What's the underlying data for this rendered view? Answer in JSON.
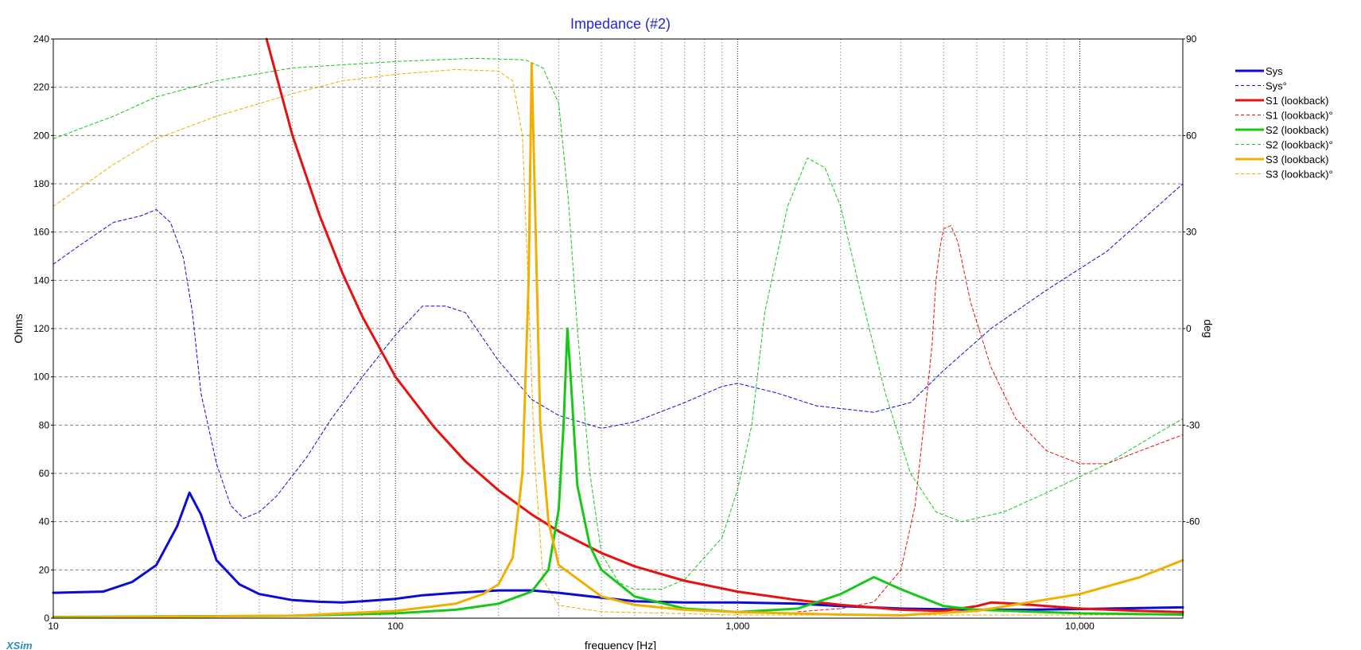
{
  "chart_data": {
    "type": "line",
    "title": "Impedance (#2)",
    "xlabel": "frequency [Hz]",
    "ylabel_left": "Ohms",
    "ylabel_right": "deg",
    "x_scale": "log",
    "xlim": [
      10,
      20000
    ],
    "ylim_left": [
      0,
      240
    ],
    "ylim_right": [
      -90,
      90
    ],
    "x_ticks": [
      {
        "value": 10,
        "label": "10"
      },
      {
        "value": 100,
        "label": "100"
      },
      {
        "value": 1000,
        "label": "1,000"
      },
      {
        "value": 10000,
        "label": "10,000"
      }
    ],
    "y_ticks_left": [
      0,
      20,
      40,
      60,
      80,
      100,
      120,
      140,
      160,
      180,
      200,
      220,
      240
    ],
    "y_ticks_right": [
      90,
      60,
      30,
      0,
      -30,
      -60
    ],
    "grid": true,
    "legend_position": "right",
    "series": [
      {
        "name": "Sys",
        "axis": "left",
        "color": "#0b0bd8",
        "style": "solid",
        "width": 3,
        "points": [
          [
            10,
            10.5
          ],
          [
            14,
            11
          ],
          [
            17,
            15
          ],
          [
            20,
            22
          ],
          [
            23,
            38
          ],
          [
            25,
            52
          ],
          [
            27,
            43
          ],
          [
            30,
            24
          ],
          [
            35,
            14
          ],
          [
            40,
            10
          ],
          [
            50,
            7.5
          ],
          [
            60,
            6.8
          ],
          [
            70,
            6.5
          ],
          [
            80,
            7
          ],
          [
            100,
            8
          ],
          [
            120,
            9.5
          ],
          [
            150,
            10.5
          ],
          [
            200,
            11.5
          ],
          [
            250,
            11.5
          ],
          [
            300,
            10.5
          ],
          [
            400,
            8.5
          ],
          [
            500,
            7
          ],
          [
            700,
            6.5
          ],
          [
            1000,
            6.5
          ],
          [
            1500,
            6
          ],
          [
            2000,
            5
          ],
          [
            3000,
            4
          ],
          [
            5000,
            3.5
          ],
          [
            7000,
            3.5
          ],
          [
            10000,
            3.8
          ],
          [
            15000,
            4.2
          ],
          [
            20000,
            4.5
          ]
        ]
      },
      {
        "name": "Sys°",
        "axis": "right",
        "color": "#0b0bd8",
        "style": "dashed",
        "width": 1,
        "points": [
          [
            10,
            20
          ],
          [
            12,
            26
          ],
          [
            15,
            33
          ],
          [
            18,
            35
          ],
          [
            20,
            37
          ],
          [
            22,
            33
          ],
          [
            24,
            22
          ],
          [
            25.5,
            5
          ],
          [
            27,
            -20
          ],
          [
            30,
            -42
          ],
          [
            33,
            -55
          ],
          [
            36,
            -59
          ],
          [
            40,
            -57
          ],
          [
            45,
            -52
          ],
          [
            55,
            -40
          ],
          [
            65,
            -28
          ],
          [
            80,
            -15
          ],
          [
            100,
            -2
          ],
          [
            120,
            7
          ],
          [
            140,
            7
          ],
          [
            160,
            5
          ],
          [
            200,
            -10
          ],
          [
            250,
            -22
          ],
          [
            300,
            -27
          ],
          [
            400,
            -31
          ],
          [
            500,
            -29
          ],
          [
            700,
            -23
          ],
          [
            900,
            -18
          ],
          [
            1000,
            -17
          ],
          [
            1300,
            -20
          ],
          [
            1700,
            -24
          ],
          [
            2500,
            -26
          ],
          [
            3200,
            -23
          ],
          [
            4000,
            -13
          ],
          [
            5500,
            0
          ],
          [
            8000,
            12
          ],
          [
            12000,
            24
          ],
          [
            20000,
            45
          ]
        ]
      },
      {
        "name": "S1 (lookback)",
        "axis": "left",
        "color": "#e81010",
        "style": "solid",
        "width": 3,
        "points": [
          [
            42,
            240
          ],
          [
            50,
            200
          ],
          [
            60,
            167
          ],
          [
            70,
            143
          ],
          [
            80,
            125
          ],
          [
            100,
            100
          ],
          [
            130,
            79
          ],
          [
            160,
            65
          ],
          [
            200,
            53
          ],
          [
            250,
            43
          ],
          [
            300,
            36
          ],
          [
            400,
            27
          ],
          [
            500,
            21.5
          ],
          [
            700,
            15.5
          ],
          [
            1000,
            11
          ],
          [
            1500,
            7.5
          ],
          [
            2000,
            5.5
          ],
          [
            3000,
            3.5
          ],
          [
            4000,
            3
          ],
          [
            5000,
            5
          ],
          [
            5500,
            6.5
          ],
          [
            6500,
            6
          ],
          [
            8000,
            5
          ],
          [
            10000,
            4
          ],
          [
            15000,
            3
          ],
          [
            20000,
            2.5
          ]
        ]
      },
      {
        "name": "S1 (lookback)°",
        "axis": "right",
        "color": "#e81010",
        "style": "dashed",
        "width": 1,
        "points": [
          [
            1500,
            -88
          ],
          [
            2000,
            -87
          ],
          [
            2500,
            -85
          ],
          [
            3000,
            -75
          ],
          [
            3300,
            -55
          ],
          [
            3500,
            -30
          ],
          [
            3700,
            -5
          ],
          [
            3800,
            15
          ],
          [
            3900,
            25
          ],
          [
            4000,
            31
          ],
          [
            4200,
            32
          ],
          [
            4400,
            27
          ],
          [
            4800,
            8
          ],
          [
            5500,
            -12
          ],
          [
            6500,
            -28
          ],
          [
            8000,
            -38
          ],
          [
            10000,
            -42
          ],
          [
            12000,
            -42
          ],
          [
            15000,
            -38
          ],
          [
            20000,
            -33
          ]
        ]
      },
      {
        "name": "S2 (lookback)",
        "axis": "left",
        "color": "#18c818",
        "style": "solid",
        "width": 3,
        "points": [
          [
            10,
            0.5
          ],
          [
            50,
            1
          ],
          [
            100,
            2
          ],
          [
            150,
            3.5
          ],
          [
            200,
            6
          ],
          [
            250,
            11
          ],
          [
            280,
            20
          ],
          [
            300,
            45
          ],
          [
            310,
            80
          ],
          [
            318,
            120
          ],
          [
            325,
            100
          ],
          [
            340,
            55
          ],
          [
            370,
            30
          ],
          [
            400,
            20
          ],
          [
            500,
            9
          ],
          [
            700,
            4
          ],
          [
            1000,
            2.5
          ],
          [
            1500,
            4
          ],
          [
            2000,
            10
          ],
          [
            2500,
            17
          ],
          [
            3000,
            12
          ],
          [
            4000,
            5
          ],
          [
            5000,
            3.5
          ],
          [
            10000,
            2
          ],
          [
            20000,
            1.5
          ]
        ]
      },
      {
        "name": "S2 (lookback)°",
        "axis": "right",
        "color": "#18c818",
        "style": "dashed",
        "width": 1,
        "points": [
          [
            10,
            59
          ],
          [
            15,
            66
          ],
          [
            20,
            72
          ],
          [
            30,
            77
          ],
          [
            50,
            81
          ],
          [
            100,
            83
          ],
          [
            170,
            84
          ],
          [
            240,
            83.5
          ],
          [
            270,
            81
          ],
          [
            300,
            70
          ],
          [
            320,
            40
          ],
          [
            340,
            0
          ],
          [
            370,
            -45
          ],
          [
            400,
            -70
          ],
          [
            450,
            -79
          ],
          [
            500,
            -81
          ],
          [
            600,
            -81
          ],
          [
            700,
            -78
          ],
          [
            900,
            -65
          ],
          [
            1000,
            -50
          ],
          [
            1100,
            -30
          ],
          [
            1200,
            5
          ],
          [
            1400,
            38
          ],
          [
            1600,
            53
          ],
          [
            1800,
            50
          ],
          [
            2000,
            38
          ],
          [
            2300,
            10
          ],
          [
            2700,
            -20
          ],
          [
            3200,
            -45
          ],
          [
            3800,
            -57
          ],
          [
            4500,
            -60
          ],
          [
            6000,
            -57
          ],
          [
            8000,
            -51
          ],
          [
            12000,
            -42
          ],
          [
            16000,
            -34
          ],
          [
            20000,
            -28
          ]
        ]
      },
      {
        "name": "S3 (lookback)",
        "axis": "left",
        "color": "#f0b000",
        "style": "solid",
        "width": 3,
        "points": [
          [
            10,
            0.3
          ],
          [
            50,
            1
          ],
          [
            100,
            3
          ],
          [
            150,
            6
          ],
          [
            180,
            10
          ],
          [
            200,
            14
          ],
          [
            220,
            25
          ],
          [
            235,
            60
          ],
          [
            245,
            140
          ],
          [
            250,
            230
          ],
          [
            255,
            180
          ],
          [
            265,
            80
          ],
          [
            280,
            40
          ],
          [
            300,
            22
          ],
          [
            400,
            9
          ],
          [
            500,
            5.5
          ],
          [
            700,
            3.5
          ],
          [
            1000,
            2.5
          ],
          [
            2000,
            1.5
          ],
          [
            3000,
            1.2
          ],
          [
            5000,
            3
          ],
          [
            10000,
            10
          ],
          [
            15000,
            17
          ],
          [
            20000,
            24
          ]
        ]
      },
      {
        "name": "S3 (lookback)°",
        "axis": "right",
        "color": "#f0b000",
        "style": "dashed",
        "width": 1,
        "points": [
          [
            10,
            38
          ],
          [
            15,
            51
          ],
          [
            20,
            59
          ],
          [
            30,
            66
          ],
          [
            50,
            73
          ],
          [
            70,
            77
          ],
          [
            100,
            79
          ],
          [
            150,
            80.5
          ],
          [
            200,
            80
          ],
          [
            220,
            77
          ],
          [
            235,
            60
          ],
          [
            245,
            10
          ],
          [
            255,
            -40
          ],
          [
            270,
            -78
          ],
          [
            300,
            -86
          ],
          [
            400,
            -88
          ],
          [
            1000,
            -89
          ],
          [
            20000,
            -89
          ]
        ]
      }
    ]
  },
  "watermark": "XSim"
}
